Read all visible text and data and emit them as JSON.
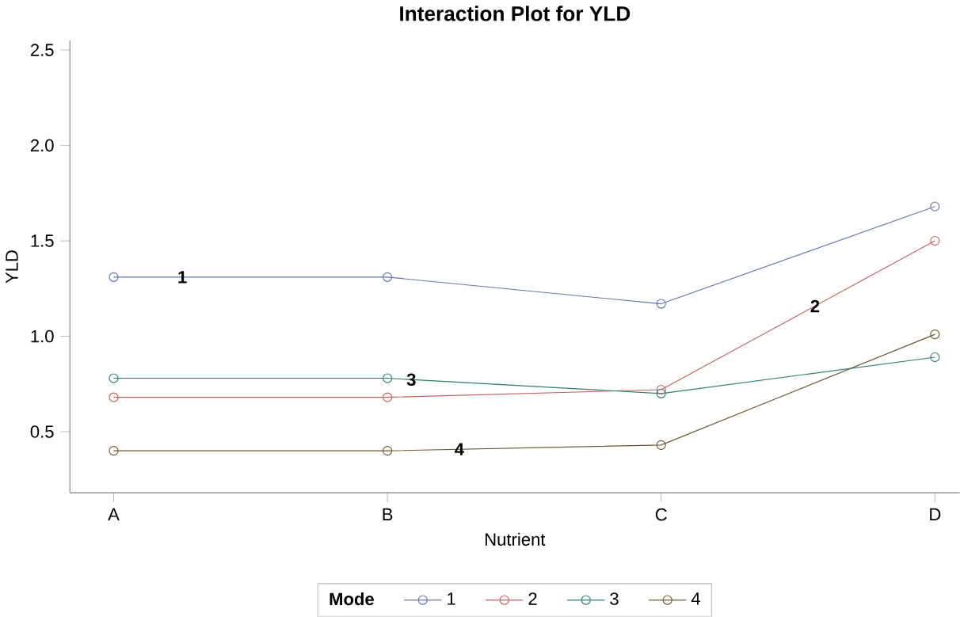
{
  "chart_data": {
    "type": "line",
    "title": "Interaction Plot for YLD",
    "xlabel": "Nutrient",
    "ylabel": "YLD",
    "legend_title": "Mode",
    "categories": [
      "A",
      "B",
      "C",
      "D"
    ],
    "series": [
      {
        "name": "1",
        "color": "#6672b0",
        "values": [
          1.31,
          1.31,
          1.17,
          1.68
        ]
      },
      {
        "name": "2",
        "color": "#c0615a",
        "values": [
          0.68,
          0.68,
          0.72,
          1.5
        ]
      },
      {
        "name": "3",
        "color": "#2a7d6e",
        "values": [
          0.78,
          0.78,
          0.7,
          0.89
        ]
      },
      {
        "name": "4",
        "color": "#6e5431",
        "values": [
          0.4,
          0.4,
          0.43,
          1.01
        ]
      }
    ],
    "ylim": [
      0.18,
      2.55
    ],
    "yticks": [
      {
        "value": 0.5,
        "label": "0.5"
      },
      {
        "value": 1.0,
        "label": "1.0"
      },
      {
        "value": 1.5,
        "label": "1.5"
      },
      {
        "value": 2.0,
        "label": "2.0"
      },
      {
        "value": 2.5,
        "label": "2.5"
      }
    ],
    "grid": false,
    "legend": "bottom",
    "marker": "circle",
    "line_style": "solid"
  }
}
